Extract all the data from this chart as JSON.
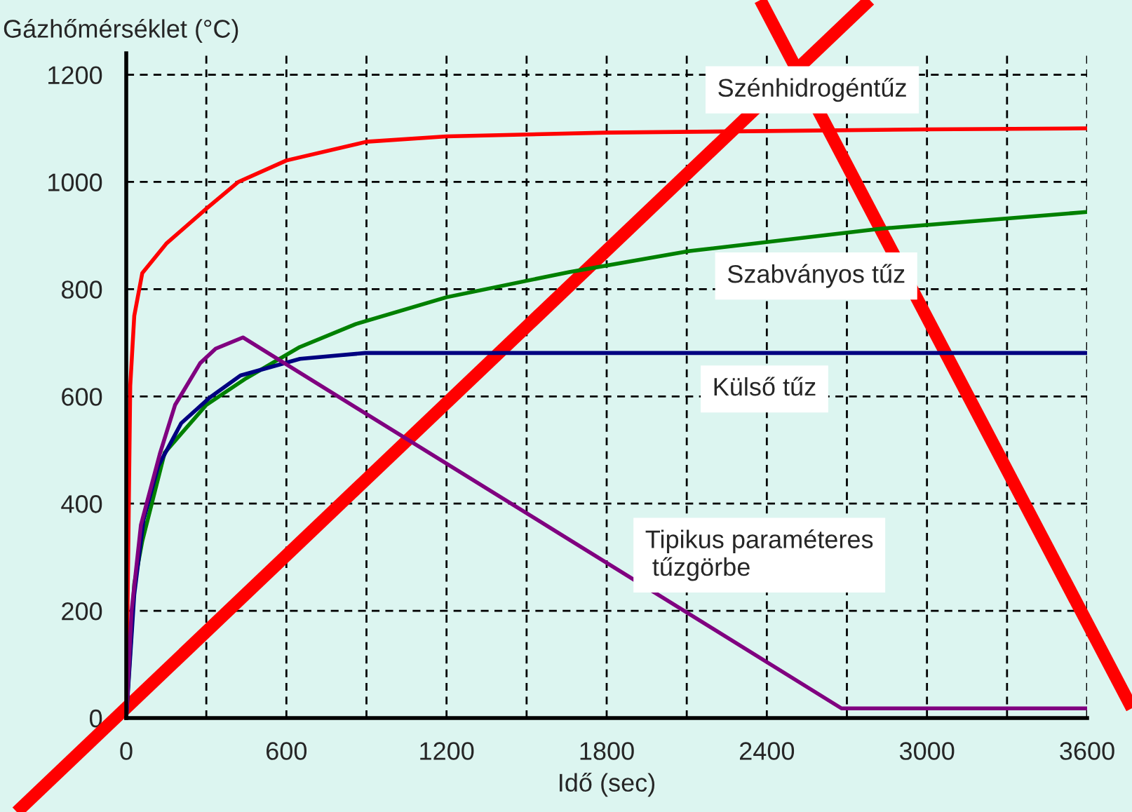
{
  "chart_data": {
    "type": "line",
    "ylabel": "Gázhőmérséklet (°C)",
    "xlabel": "Idő (sec)",
    "xlim": [
      0,
      3600
    ],
    "ylim": [
      0,
      1240
    ],
    "xticks": [
      0,
      {
        "value": 300,
        "label": null
      },
      600,
      {
        "value": 900,
        "label": null
      },
      1200,
      {
        "value": 1500,
        "label": null
      },
      1800,
      {
        "value": 2100,
        "label": null
      },
      2400,
      {
        "value": 2700,
        "label": null
      },
      3000,
      {
        "value": 3300,
        "label": null
      },
      3600
    ],
    "yticks": [
      0,
      200,
      400,
      600,
      800,
      1000,
      1200
    ],
    "grid": true,
    "marker": "none",
    "line_style": "solid",
    "series": [
      {
        "name": "Szénhidrogéntűz",
        "color": "#ff0000",
        "x": [
          0,
          15,
          30,
          60,
          150,
          300,
          420,
          600,
          900,
          1200,
          1800,
          2400,
          3000,
          3600
        ],
        "values": [
          0,
          620,
          750,
          830,
          885,
          950,
          1000,
          1040,
          1075,
          1085,
          1092,
          1095,
          1098,
          1100
        ]
      },
      {
        "name": "Szabványos tűz",
        "color": "#008000",
        "x": [
          0,
          30,
          60,
          144,
          300,
          450,
          650,
          860,
          1200,
          1660,
          2110,
          2830,
          3600
        ],
        "values": [
          0,
          250,
          330,
          495,
          584,
          634,
          692,
          735,
          785,
          832,
          871,
          913,
          944
        ]
      },
      {
        "name": "Külső tűz",
        "color": "#000080",
        "x": [
          0,
          30,
          65,
          120,
          206,
          311,
          428,
          651,
          896,
          3600
        ],
        "values": [
          0,
          230,
          370,
          470,
          550,
          597,
          639,
          670,
          681,
          681
        ]
      },
      {
        "name": "Tipikus paraméteres\n tűzgörbe",
        "color": "#800080",
        "x": [
          0,
          20,
          55,
          126,
          183,
          277,
          335,
          437,
          2680,
          3600
        ],
        "values": [
          0,
          200,
          360,
          493,
          584,
          662,
          689,
          710,
          18,
          18
        ]
      }
    ]
  }
}
